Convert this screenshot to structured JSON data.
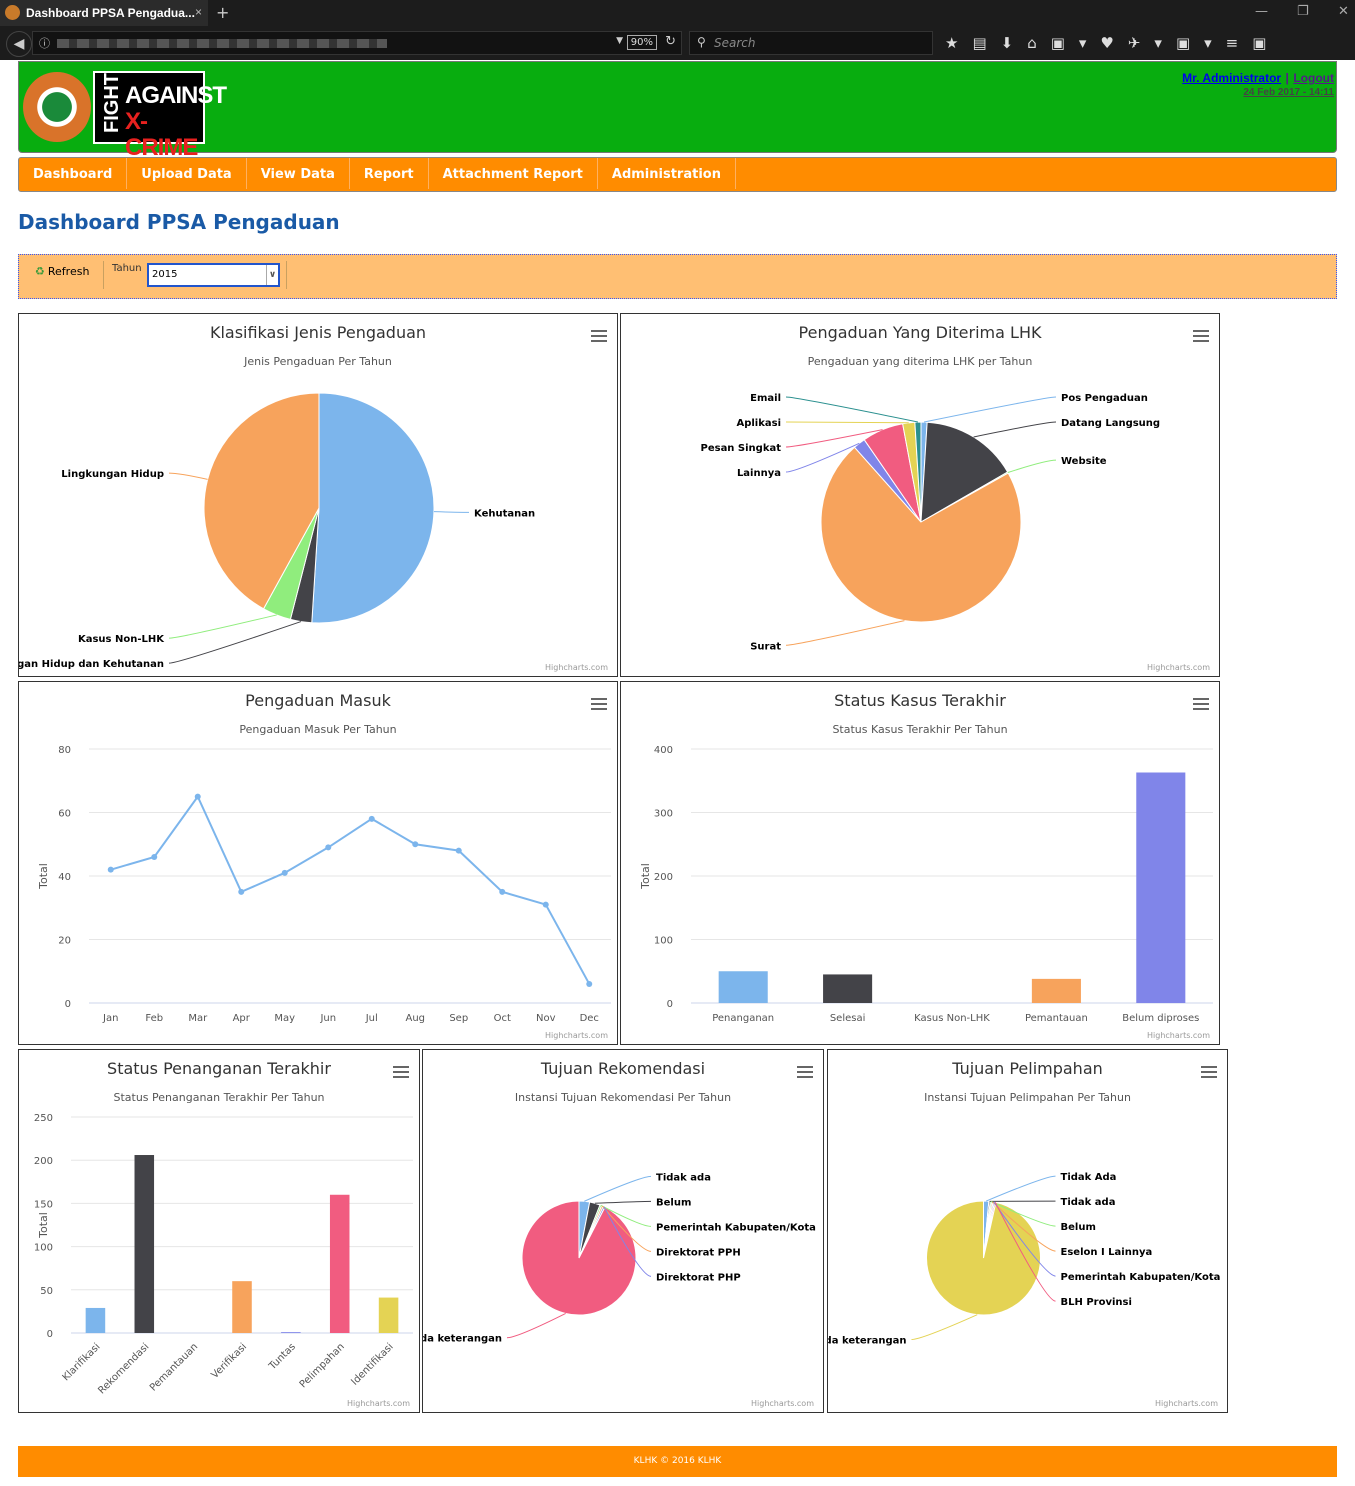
{
  "browser": {
    "tab_title": "Dashboard PPSA Pengadua...",
    "zoom": "90%",
    "search_placeholder": "Search"
  },
  "header": {
    "logo_text": "FIGHT AGAINST X-CRIME",
    "user": "Mr. Administrator",
    "separator": "|",
    "logout": "Logout",
    "datetime": "24 Feb 2017 - 14:11"
  },
  "nav": [
    "Dashboard",
    "Upload Data",
    "View Data",
    "Report",
    "Attachment Report",
    "Administration"
  ],
  "page_title": "Dashboard PPSA Pengaduan",
  "toolbar": {
    "refresh": "Refresh",
    "year_label": "Tahun",
    "year_value": "2015"
  },
  "credits": "Highcharts.com",
  "colors": [
    "#7cb5ec",
    "#434348",
    "#90ed7d",
    "#f7a35c",
    "#8085e9",
    "#f15c80",
    "#e4d354",
    "#2b908f"
  ],
  "chart_data": [
    {
      "id": "klasifikasi",
      "type": "pie",
      "title": "Klasifikasi Jenis Pengaduan",
      "subtitle": "Jenis Pengaduan Per Tahun",
      "labels": [
        "Kehutanan",
        "Lingkungan Hidup dan Kehutanan",
        "Kasus Non-LHK",
        "Lingkungan Hidup"
      ],
      "values": [
        51,
        3,
        4,
        42
      ],
      "colors": [
        "#7cb5ec",
        "#434348",
        "#90ed7d",
        "#f7a35c"
      ]
    },
    {
      "id": "diterima",
      "type": "pie",
      "title": "Pengaduan Yang Diterima LHK",
      "subtitle": "Pengaduan yang diterima LHK per Tahun",
      "labels": [
        "Pos Pengaduan",
        "Datang Langsung",
        "Website",
        "Surat",
        "Lainnya",
        "Pesan Singkat",
        "Aplikasi",
        "Email"
      ],
      "values": [
        1,
        16,
        0.2,
        73,
        2,
        6.8,
        2,
        1
      ],
      "colors": [
        "#7cb5ec",
        "#434348",
        "#90ed7d",
        "#f7a35c",
        "#8085e9",
        "#f15c80",
        "#e4d354",
        "#2b908f"
      ]
    },
    {
      "id": "masuk",
      "type": "line",
      "title": "Pengaduan Masuk",
      "subtitle": "Pengaduan Masuk Per Tahun",
      "ylabel": "Total",
      "ylim": [
        0,
        80
      ],
      "yticks": [
        0,
        20,
        40,
        60,
        80
      ],
      "categories": [
        "Jan",
        "Feb",
        "Mar",
        "Apr",
        "May",
        "Jun",
        "Jul",
        "Aug",
        "Sep",
        "Oct",
        "Nov",
        "Dec"
      ],
      "values": [
        42,
        46,
        65,
        35,
        41,
        49,
        58,
        50,
        48,
        35,
        31,
        6
      ],
      "color": "#7cb5ec"
    },
    {
      "id": "statuskasus",
      "type": "bar",
      "title": "Status Kasus Terakhir",
      "subtitle": "Status Kasus Terakhir Per Tahun",
      "ylabel": "Total",
      "ylim": [
        0,
        400
      ],
      "yticks": [
        0,
        100,
        200,
        300,
        400
      ],
      "categories": [
        "Penanganan",
        "Selesai",
        "Kasus Non-LHK",
        "Pemantauan",
        "Belum diproses"
      ],
      "values": [
        50,
        45,
        0,
        38,
        363
      ],
      "colors": [
        "#7cb5ec",
        "#434348",
        "#90ed7d",
        "#f7a35c",
        "#8085e9"
      ]
    },
    {
      "id": "statuspenanganan",
      "type": "bar",
      "title": "Status Penanganan Terakhir",
      "subtitle": "Status Penanganan Terakhir Per Tahun",
      "ylabel": "Total",
      "ylim": [
        0,
        250
      ],
      "yticks": [
        0,
        50,
        100,
        150,
        200,
        250
      ],
      "rotate_labels": true,
      "categories": [
        "Klarifikasi",
        "Rekomendasi",
        "Pemantauan",
        "Verifikasi",
        "Tuntas",
        "Pelimpahan",
        "Identifikasi"
      ],
      "values": [
        29,
        206,
        0,
        60,
        1,
        160,
        41
      ],
      "colors": [
        "#7cb5ec",
        "#434348",
        "#90ed7d",
        "#f7a35c",
        "#8085e9",
        "#f15c80",
        "#e4d354"
      ]
    },
    {
      "id": "rekomendasi",
      "type": "pie",
      "title": "Tujuan Rekomendasi",
      "subtitle": "Instansi Tujuan Rekomendasi Per Tahun",
      "labels": [
        "Tidak ada",
        "Belum",
        "Pemerintah Kabupaten/Kota",
        "Direktorat PPH",
        "Direktorat PHP",
        "Tidak ada keterangan"
      ],
      "values": [
        3,
        3,
        0.5,
        0.5,
        0.5,
        92.5
      ],
      "colors": [
        "#7cb5ec",
        "#434348",
        "#90ed7d",
        "#f7a35c",
        "#8085e9",
        "#f15c80"
      ]
    },
    {
      "id": "pelimpahan",
      "type": "pie",
      "title": "Tujuan Pelimpahan",
      "subtitle": "Instansi Tujuan Pelimpahan Per Tahun",
      "labels": [
        "Tidak Ada",
        "Tidak ada",
        "Belum",
        "Eselon I Lainnya",
        "Pemerintah Kabupaten/Kota",
        "BLH Provinsi",
        "Tidak ada keterangan"
      ],
      "values": [
        1.5,
        0.4,
        0.4,
        0.4,
        0.4,
        0.4,
        96.5
      ],
      "colors": [
        "#7cb5ec",
        "#434348",
        "#90ed7d",
        "#f7a35c",
        "#8085e9",
        "#f15c80",
        "#e4d354"
      ]
    }
  ],
  "footer": "KLHK © 2016 KLHK"
}
